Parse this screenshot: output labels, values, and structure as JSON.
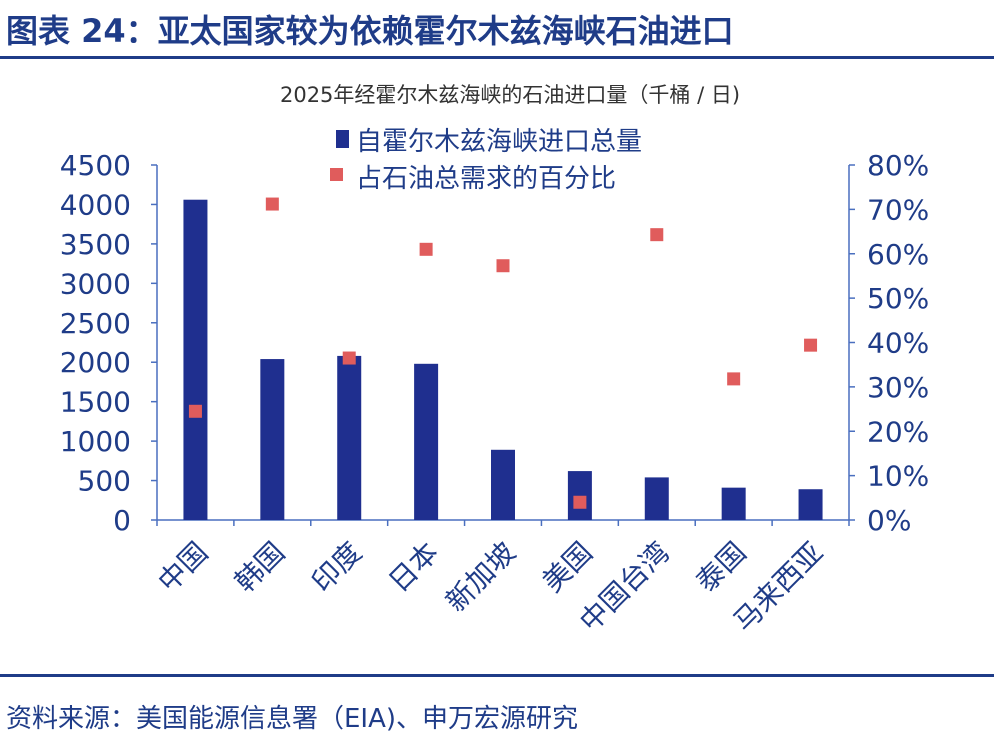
{
  "figure": {
    "title": "图表 24：亚太国家较为依赖霍尔木兹海峡石油进口",
    "source": "资料来源：美国能源信息署（EIA)、申万宏源研究"
  },
  "colors": {
    "bar": "#1f2f8f",
    "marker": "#e05c5c",
    "axis": "#4a6fbf",
    "text": "#1f3c88",
    "chart_title": "#333333"
  },
  "chart_data": {
    "type": "bar",
    "title": "2025年经霍尔木兹海峡的石油进口量（千桶 / 日)",
    "categories": [
      "中国",
      "韩国",
      "印度",
      "日本",
      "新加坡",
      "美国",
      "中国台湾",
      "泰国",
      "马来西亚"
    ],
    "series": [
      {
        "name": "自霍尔木兹海峡进口总量",
        "type": "bar",
        "axis": "left",
        "values": [
          4060,
          2040,
          2080,
          1980,
          890,
          620,
          540,
          410,
          390
        ]
      },
      {
        "name": "占石油总需求的百分比",
        "type": "scatter",
        "axis": "right",
        "values": [
          0.245,
          0.712,
          0.365,
          0.61,
          0.573,
          0.04,
          0.643,
          0.318,
          0.394
        ]
      }
    ],
    "y_left": {
      "min": 0,
      "max": 4500,
      "ticks": [
        "0",
        "500",
        "1000",
        "1500",
        "2000",
        "2500",
        "3000",
        "3500",
        "4000",
        "4500"
      ]
    },
    "y_right": {
      "min": 0,
      "max": 0.8,
      "ticks": [
        "0%",
        "10%",
        "20%",
        "30%",
        "40%",
        "50%",
        "60%",
        "70%",
        "80%"
      ]
    },
    "legend_position": "top-center",
    "grid": false
  }
}
